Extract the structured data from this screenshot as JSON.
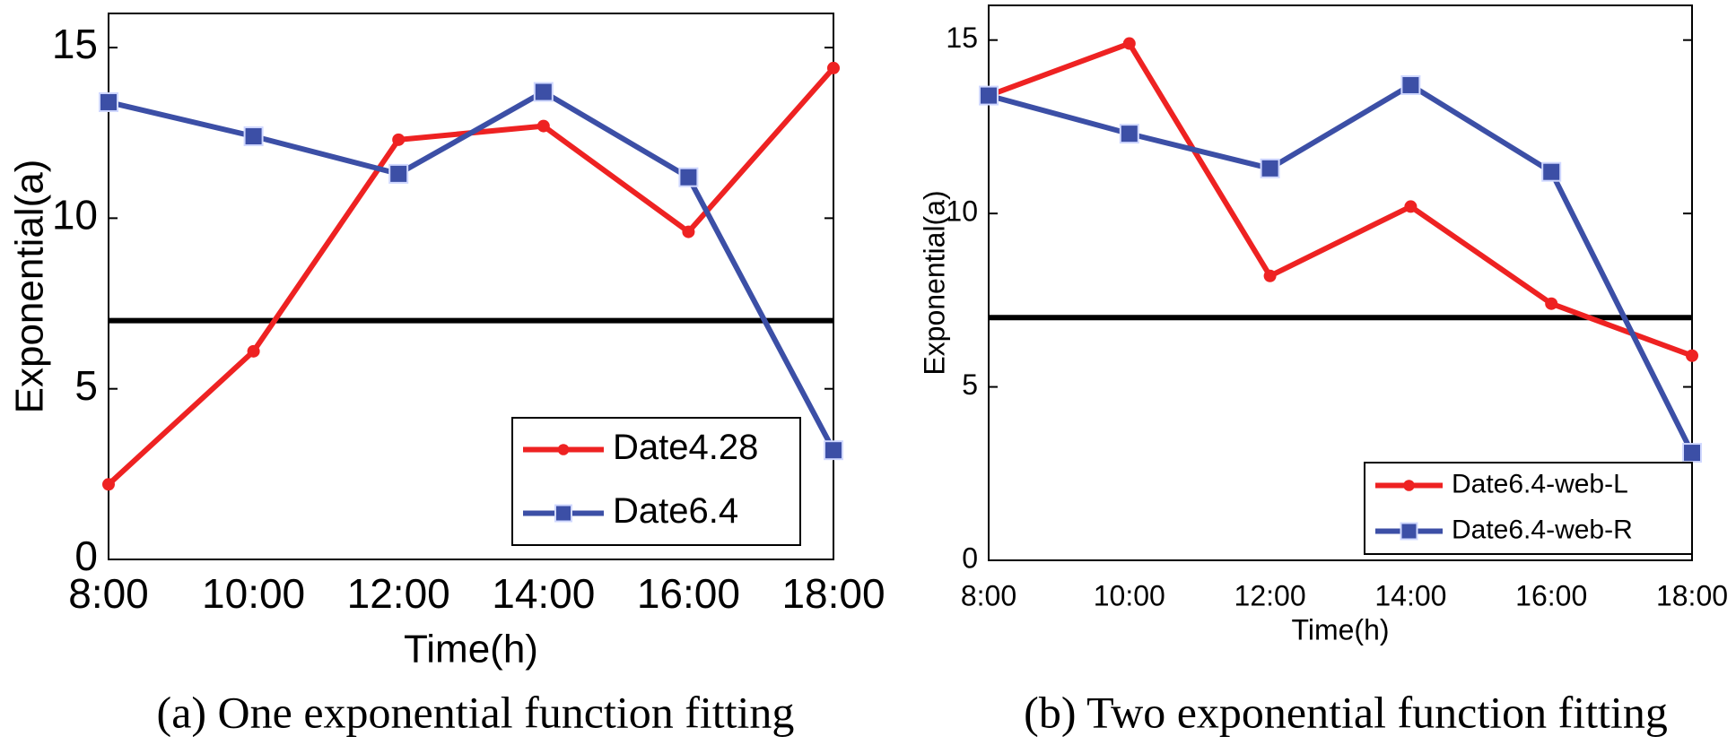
{
  "chart_data": [
    {
      "type": "line",
      "caption": "(a) One exponential function fitting",
      "xlabel": "Time(h)",
      "ylabel": "Exponential(a)",
      "categories": [
        "8:00",
        "10:00",
        "12:00",
        "14:00",
        "16:00",
        "18:00"
      ],
      "series": [
        {
          "name": "Date4.28",
          "color": "#ee2222",
          "marker": "circle",
          "values": [
            2.2,
            6.1,
            12.3,
            12.7,
            9.6,
            14.4
          ]
        },
        {
          "name": "Date6.4",
          "color": "#3c4fa6",
          "marker": "square",
          "values": [
            13.4,
            12.4,
            11.3,
            13.7,
            11.2,
            3.2
          ]
        }
      ],
      "hline": 7,
      "hline_color": "#000000",
      "ylim": [
        0,
        16
      ],
      "yticks": [
        0,
        5,
        10,
        15
      ],
      "grid": false,
      "legend": "lower right"
    },
    {
      "type": "line",
      "caption": "(b) Two exponential function fitting",
      "xlabel": "Time(h)",
      "ylabel": "Exponential(a)",
      "categories": [
        "8:00",
        "10:00",
        "12:00",
        "14:00",
        "16:00",
        "18:00"
      ],
      "series": [
        {
          "name": "Date6.4-web-L",
          "color": "#ee2222",
          "marker": "circle",
          "values": [
            13.4,
            14.9,
            8.2,
            10.2,
            7.4,
            5.9
          ]
        },
        {
          "name": "Date6.4-web-R",
          "color": "#3c4fa6",
          "marker": "square",
          "values": [
            13.4,
            12.3,
            11.3,
            13.7,
            11.2,
            3.1
          ]
        }
      ],
      "hline": 7,
      "hline_color": "#000000",
      "ylim": [
        0,
        16
      ],
      "yticks": [
        0,
        5,
        10,
        15
      ],
      "grid": false,
      "legend": "lower right"
    }
  ]
}
